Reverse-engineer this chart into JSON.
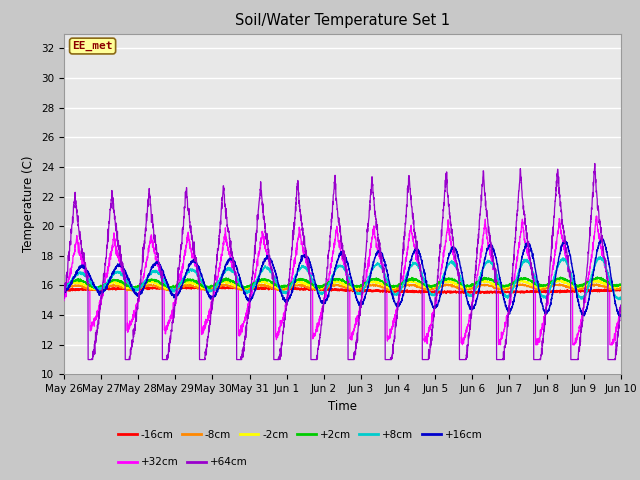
{
  "title": "Soil/Water Temperature Set 1",
  "xlabel": "Time",
  "ylabel": "Temperature (C)",
  "ylim": [
    10,
    33
  ],
  "yticks": [
    10,
    12,
    14,
    16,
    18,
    20,
    22,
    24,
    26,
    28,
    30,
    32
  ],
  "annotation": "EE_met",
  "annotation_color": "#8B0000",
  "annotation_bg": "#FFFF99",
  "series_colors": {
    "-16cm": "#FF0000",
    "-8cm": "#FF8800",
    "-2cm": "#FFFF00",
    "+2cm": "#00CC00",
    "+8cm": "#00CCCC",
    "+16cm": "#0000CC",
    "+32cm": "#FF00FF",
    "+64cm": "#9900CC"
  },
  "tick_labels": [
    "May 26",
    "May 27",
    "May 28",
    "May 29",
    "May 30",
    "May 31",
    "Jun 1",
    "Jun 2",
    "Jun 3",
    "Jun 4",
    "Jun 5",
    "Jun 6",
    "Jun 7",
    "Jun 8",
    "Jun 9",
    "Jun 10"
  ],
  "tick_positions": [
    0,
    1,
    2,
    3,
    4,
    5,
    6,
    7,
    8,
    9,
    10,
    11,
    12,
    13,
    14,
    15
  ]
}
